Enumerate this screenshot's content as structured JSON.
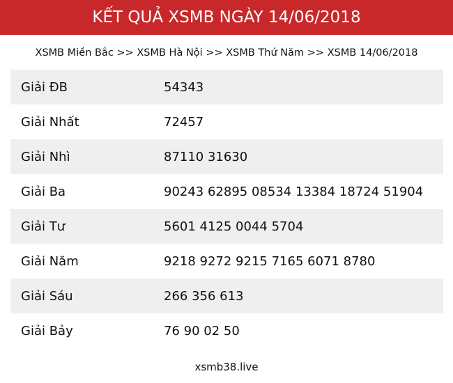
{
  "title": "KẾT QUẢ XSMB NGÀY 14/06/2018",
  "breadcrumb": [
    "XSMB Miền Bắc",
    "XSMB Hà Nội",
    "XSMB Thứ Năm",
    "XSMB 14/06/2018"
  ],
  "breadcrumb_separator": ">>",
  "prizes": [
    {
      "label": "Giải ĐB",
      "value": "54343"
    },
    {
      "label": "Giải Nhất",
      "value": "72457"
    },
    {
      "label": "Giải Nhì",
      "value": "87110 31630"
    },
    {
      "label": "Giải Ba",
      "value": "90243 62895 08534 13384 18724 51904"
    },
    {
      "label": "Giải Tư",
      "value": "5601 4125 0044 5704"
    },
    {
      "label": "Giải Năm",
      "value": "9218 9272 9215 7165 6071 8780"
    },
    {
      "label": "Giải Sáu",
      "value": "266 356 613"
    },
    {
      "label": "Giải Bảy",
      "value": "76 90 02 50"
    }
  ],
  "footer": "xsmb38.live",
  "colors": {
    "header_bg": "#c8282a",
    "row_alt_bg": "#efefef"
  }
}
